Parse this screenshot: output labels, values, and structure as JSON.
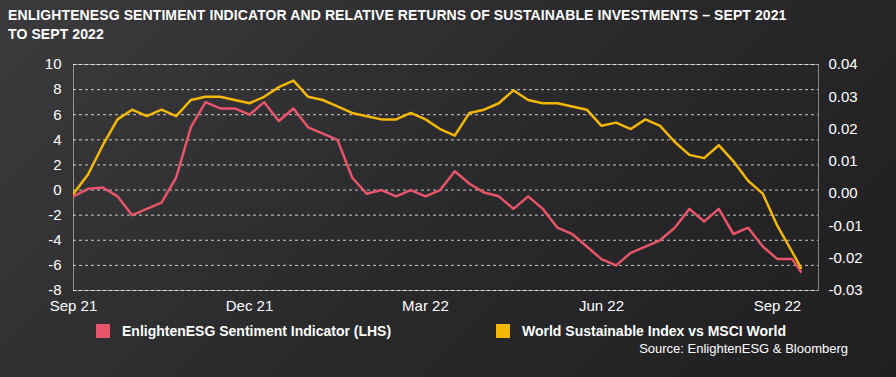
{
  "chart_data": {
    "type": "line",
    "title": "ENLIGHTENESG SENTIMENT INDICATOR AND RELATIVE RETURNS OF SUSTAINABLE INVESTMENTS – SEPT 2021 TO SEPT 2022",
    "source": "Source: EnlightenESG & Bloomberg",
    "x": [
      0,
      0.25,
      0.5,
      0.75,
      1,
      1.25,
      1.5,
      1.75,
      2,
      2.25,
      2.5,
      2.75,
      3,
      3.25,
      3.5,
      3.75,
      4,
      4.25,
      4.5,
      4.75,
      5,
      5.25,
      5.5,
      5.75,
      6,
      6.25,
      6.5,
      6.75,
      7,
      7.25,
      7.5,
      7.75,
      8,
      8.25,
      8.5,
      8.75,
      9,
      9.25,
      9.5,
      9.75,
      10,
      10.25,
      10.5,
      10.75,
      11,
      11.25,
      11.5,
      11.75,
      12,
      12.25,
      12.4
    ],
    "xlim": [
      0,
      12.7
    ],
    "xticks": [
      {
        "value": 0,
        "label": "Sep 21"
      },
      {
        "value": 3,
        "label": "Dec 21"
      },
      {
        "value": 6,
        "label": "Mar 22"
      },
      {
        "value": 9,
        "label": "Jun 22"
      },
      {
        "value": 12,
        "label": "Sep 22"
      }
    ],
    "ylim": [
      -8,
      10
    ],
    "yticks": [
      -8,
      -6,
      -4,
      -2,
      0,
      2,
      4,
      6,
      8,
      10
    ],
    "y2lim": [
      -0.03,
      0.04
    ],
    "y2ticks": [
      -0.03,
      -0.02,
      -0.01,
      {
        "value": 0,
        "label": "0.00"
      },
      0.01,
      0.02,
      0.03,
      0.04
    ],
    "grid": true,
    "legend": "bottom",
    "series": [
      {
        "name": "EnlightenESG Sentiment Indicator (LHS)",
        "color": "#e8546a",
        "values": [
          -0.5,
          0.1,
          0.2,
          -0.5,
          -2.0,
          -1.5,
          -1.0,
          1.0,
          5.0,
          7.0,
          6.5,
          6.5,
          6.0,
          7.0,
          5.5,
          6.5,
          5.0,
          4.5,
          4.0,
          1.0,
          -0.3,
          0.0,
          -0.5,
          0.0,
          -0.5,
          0.0,
          1.5,
          0.5,
          -0.2,
          -0.5,
          -1.5,
          -0.5,
          -1.5,
          -3.0,
          -3.5,
          -4.5,
          -5.5,
          -6.0,
          -5.0,
          -4.5,
          -4.0,
          -3.0,
          -1.5,
          -2.5,
          -1.5,
          -3.5,
          -3.0,
          -4.5,
          -5.5,
          -5.5,
          -6.5
        ]
      },
      {
        "name": "World Sustainable Index vs MSCI World",
        "color": "#f5b800",
        "axis": "y2",
        "values": [
          0.0,
          0.006,
          0.015,
          0.023,
          0.026,
          0.024,
          0.026,
          0.024,
          0.029,
          0.03,
          0.03,
          0.029,
          0.028,
          0.03,
          0.033,
          0.035,
          0.03,
          0.029,
          0.027,
          0.025,
          0.024,
          0.023,
          0.023,
          0.025,
          0.023,
          0.02,
          0.018,
          0.025,
          0.026,
          0.028,
          0.032,
          0.029,
          0.028,
          0.028,
          0.027,
          0.026,
          0.021,
          0.022,
          0.02,
          0.023,
          0.021,
          0.016,
          0.012,
          0.011,
          0.015,
          0.01,
          0.004,
          0.0,
          -0.01,
          -0.018,
          -0.023
        ]
      }
    ]
  }
}
